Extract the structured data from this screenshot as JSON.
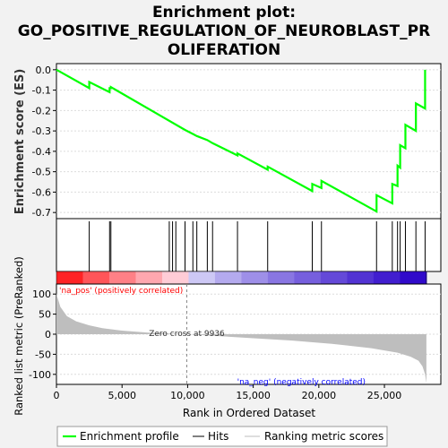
{
  "title_line1": "Enrichment plot:",
  "title_line2": "GO_POSITIVE_REGULATION_OF_NEUROBLAST_PR",
  "title_line3": "OLIFERATION",
  "chart_data": {
    "type": "line",
    "es_panel": {
      "ylabel": "Enrichment score (ES)",
      "ylim": [
        -0.73,
        0.03
      ],
      "yticks": [
        0.0,
        -0.1,
        -0.2,
        -0.3,
        -0.4,
        -0.5,
        -0.6,
        -0.7
      ],
      "ytick_labels": [
        "0.0",
        "-0.1",
        "-0.2",
        "-0.3",
        "-0.4",
        "-0.5",
        "-0.6",
        "-0.7"
      ],
      "series": [
        {
          "name": "Enrichment profile",
          "color": "#00ff00",
          "x": [
            0,
            2500,
            2500,
            4050,
            4050,
            4150,
            4150,
            9800,
            10400,
            10700,
            11500,
            11900,
            13800,
            13800,
            16100,
            16100,
            19500,
            19500,
            20200,
            20200,
            24400,
            24400,
            25600,
            25600,
            26000,
            26000,
            26200,
            26200,
            26600,
            26600,
            27400,
            27400,
            28100,
            28100
          ],
          "y": [
            0.0,
            -0.09,
            -0.06,
            -0.11,
            -0.09,
            -0.09,
            -0.085,
            -0.295,
            -0.315,
            -0.325,
            -0.345,
            -0.36,
            -0.42,
            -0.41,
            -0.49,
            -0.475,
            -0.595,
            -0.56,
            -0.58,
            -0.545,
            -0.695,
            -0.615,
            -0.655,
            -0.56,
            -0.57,
            -0.47,
            -0.48,
            -0.37,
            -0.385,
            -0.27,
            -0.3,
            -0.165,
            -0.19,
            0.0
          ]
        }
      ]
    },
    "hits": {
      "name": "Hits",
      "color": "#000000",
      "x": [
        2500,
        4050,
        4150,
        8600,
        8850,
        9100,
        9800,
        10400,
        10700,
        11500,
        11900,
        13800,
        16100,
        19500,
        20200,
        24400,
        25600,
        26000,
        26200,
        26600,
        27400,
        28100
      ]
    },
    "rank_panel": {
      "ylabel": "Ranked list metric (PreRanked)",
      "xlabel": "Rank in Ordered Dataset",
      "xlim": [
        0,
        29300
      ],
      "ylim": [
        -125,
        125
      ],
      "yticks": [
        100,
        50,
        0,
        -50,
        -100
      ],
      "ytick_labels": [
        "100",
        "50",
        "0",
        "-50",
        "-100"
      ],
      "xticks": [
        0,
        5000,
        10000,
        15000,
        20000,
        25000
      ],
      "xtick_labels": [
        "0",
        "5,000",
        "10,000",
        "15,000",
        "20,000",
        "25,000"
      ],
      "n_genes": 28200,
      "zero_cross": 9936,
      "zero_cross_label": "Zero cross at 9936",
      "pos_label": "'na_pos' (positively correlated)",
      "neg_label": "'na_neg' (negatively correlated)",
      "pos_color": "#ff0000",
      "neg_color": "#0000ff",
      "fill_color": "#bebebe",
      "metric_profile": {
        "x": [
          0,
          300,
          800,
          1500,
          2500,
          3500,
          5000,
          7000,
          9936,
          12000,
          15000,
          18000,
          21000,
          24000,
          26000,
          27000,
          27600,
          27900,
          28100,
          28200
        ],
        "y": [
          100,
          68,
          45,
          32,
          22,
          15,
          9,
          4,
          0,
          -4,
          -10,
          -16,
          -24,
          -35,
          -46,
          -56,
          -66,
          -80,
          -100,
          -122
        ]
      }
    },
    "legend": {
      "placement": "bottom",
      "items": [
        {
          "label": "Enrichment profile",
          "color": "#00ff00"
        },
        {
          "label": "Hits",
          "color": "#000000"
        },
        {
          "label": "Ranking metric scores",
          "color": "#bebebe"
        }
      ]
    }
  }
}
